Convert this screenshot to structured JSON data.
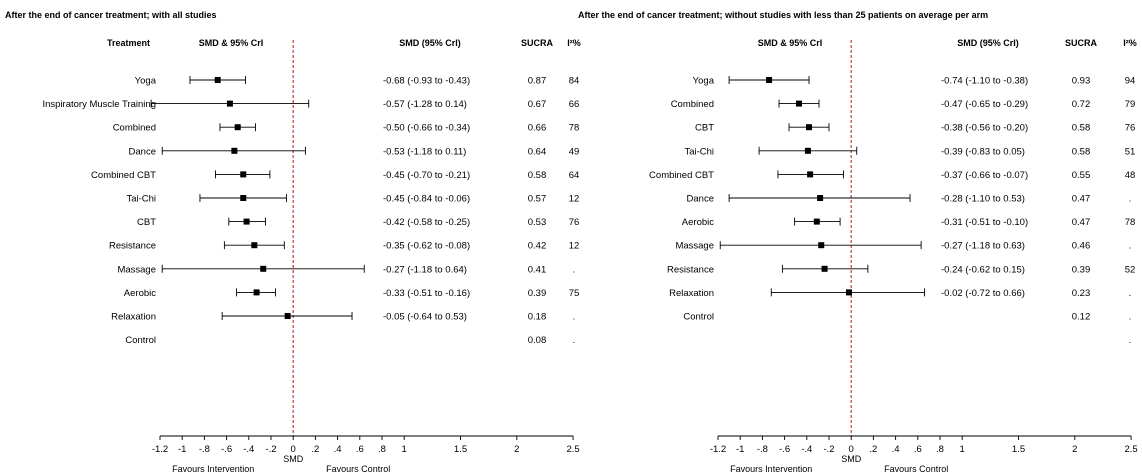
{
  "panels": [
    {
      "title": "After the end of cancer treatment; with all studies",
      "headers": {
        "treatment": "Treatment",
        "forest": "SMD  & 95% CrI",
        "ci": "SMD  (95% CrI)",
        "sucra": "SUCRA",
        "i2": "I²%"
      },
      "rows": [
        {
          "label": "Yoga",
          "ci": "-0.68 (-0.93 to -0.43)",
          "sucra": "0.87",
          "i2": "84"
        },
        {
          "label": "Inspiratory Muscle Training",
          "ci": "-0.57 (-1.28 to 0.14)",
          "sucra": "0.67",
          "i2": "66"
        },
        {
          "label": "Combined",
          "ci": "-0.50 (-0.66 to -0.34)",
          "sucra": "0.66",
          "i2": "78"
        },
        {
          "label": "Dance",
          "ci": "-0.53 (-1.18 to 0.11)",
          "sucra": "0.64",
          "i2": "49"
        },
        {
          "label": "Combined CBT",
          "ci": "-0.45 (-0.70 to -0.21)",
          "sucra": "0.58",
          "i2": "64"
        },
        {
          "label": "Tai-Chi",
          "ci": "-0.45 (-0.84 to -0.06)",
          "sucra": "0.57",
          "i2": "12"
        },
        {
          "label": "CBT",
          "ci": "-0.42 (-0.58 to -0.25)",
          "sucra": "0.53",
          "i2": "76"
        },
        {
          "label": "Resistance",
          "ci": "-0.35 (-0.62 to -0.08)",
          "sucra": "0.42",
          "i2": "12"
        },
        {
          "label": "Massage",
          "ci": "-0.27 (-1.18 to 0.64)",
          "sucra": "0.41",
          "i2": "."
        },
        {
          "label": "Aerobic",
          "ci": "-0.33 (-0.51 to -0.16)",
          "sucra": "0.39",
          "i2": "75"
        },
        {
          "label": "Relaxation",
          "ci": "-0.05 (-0.64 to 0.53)",
          "sucra": "0.18",
          "i2": "."
        },
        {
          "label": "Control",
          "ci": "",
          "sucra": "0.08",
          "i2": "."
        }
      ]
    },
    {
      "title": "After the end of cancer treatment; without studies with less than 25 patients on average per arm",
      "headers": {
        "treatment": "",
        "forest": "SMD  & 95% CrI",
        "ci": "SMD  (95% CrI)",
        "sucra": "SUCRA",
        "i2": "I²%"
      },
      "rows": [
        {
          "label": "Yoga",
          "ci": "-0.74 (-1.10 to -0.38)",
          "sucra": "0.93",
          "i2": "94"
        },
        {
          "label": "Combined",
          "ci": "-0.47 (-0.65 to -0.29)",
          "sucra": "0.72",
          "i2": "79"
        },
        {
          "label": "CBT",
          "ci": "-0.38 (-0.56 to -0.20)",
          "sucra": "0.58",
          "i2": "76"
        },
        {
          "label": "Tai-Chi",
          "ci": "-0.39 (-0.83 to 0.05)",
          "sucra": "0.58",
          "i2": "51"
        },
        {
          "label": "Combined CBT",
          "ci": "-0.37 (-0.66 to -0.07)",
          "sucra": "0.55",
          "i2": "48"
        },
        {
          "label": "Dance",
          "ci": "-0.28 (-1.10 to 0.53)",
          "sucra": "0.47",
          "i2": "."
        },
        {
          "label": "Aerobic",
          "ci": "-0.31 (-0.51 to -0.10)",
          "sucra": "0.47",
          "i2": "78"
        },
        {
          "label": "Massage",
          "ci": "-0.27 (-1.18 to 0.63)",
          "sucra": "0.46",
          "i2": "."
        },
        {
          "label": "Resistance",
          "ci": "-0.24 (-0.62 to 0.15)",
          "sucra": "0.39",
          "i2": "52"
        },
        {
          "label": "Relaxation",
          "ci": "-0.02 (-0.72 to 0.66)",
          "sucra": "0.23",
          "i2": "."
        },
        {
          "label": "Control",
          "ci": "",
          "sucra": "0.12",
          "i2": "."
        },
        {
          "label": "",
          "ci": "",
          "sucra": "",
          "i2": "."
        }
      ]
    }
  ],
  "axis": {
    "ticks": [
      "-1.2",
      "-1",
      "-.8",
      "-.6",
      "-.4",
      "-.2",
      "0",
      ".2",
      ".4",
      ".6",
      ".8",
      "1",
      "1.5",
      "2",
      "2.5"
    ],
    "xlabel": "SMD",
    "favours_left": "Favours Intervention",
    "favours_right": "Favours Control"
  },
  "colors": {
    "reference_line": "#e0453a",
    "marks": "#000000"
  },
  "chart_data": [
    {
      "type": "forest",
      "title": "After the end of cancer treatment; with all studies",
      "xlabel": "SMD",
      "xlim": [
        -1.2,
        2.5
      ],
      "reference_line": 0,
      "series": [
        {
          "label": "Yoga",
          "est": -0.68,
          "lo": -0.93,
          "hi": -0.43,
          "sucra": 0.87,
          "i2": 84
        },
        {
          "label": "Inspiratory Muscle Training",
          "est": -0.57,
          "lo": -1.28,
          "hi": 0.14,
          "sucra": 0.67,
          "i2": 66
        },
        {
          "label": "Combined",
          "est": -0.5,
          "lo": -0.66,
          "hi": -0.34,
          "sucra": 0.66,
          "i2": 78
        },
        {
          "label": "Dance",
          "est": -0.53,
          "lo": -1.18,
          "hi": 0.11,
          "sucra": 0.64,
          "i2": 49
        },
        {
          "label": "Combined CBT",
          "est": -0.45,
          "lo": -0.7,
          "hi": -0.21,
          "sucra": 0.58,
          "i2": 64
        },
        {
          "label": "Tai-Chi",
          "est": -0.45,
          "lo": -0.84,
          "hi": -0.06,
          "sucra": 0.57,
          "i2": 12
        },
        {
          "label": "CBT",
          "est": -0.42,
          "lo": -0.58,
          "hi": -0.25,
          "sucra": 0.53,
          "i2": 76
        },
        {
          "label": "Resistance",
          "est": -0.35,
          "lo": -0.62,
          "hi": -0.08,
          "sucra": 0.42,
          "i2": 12
        },
        {
          "label": "Massage",
          "est": -0.27,
          "lo": -1.18,
          "hi": 0.64,
          "sucra": 0.41,
          "i2": null
        },
        {
          "label": "Aerobic",
          "est": -0.33,
          "lo": -0.51,
          "hi": -0.16,
          "sucra": 0.39,
          "i2": 75
        },
        {
          "label": "Relaxation",
          "est": -0.05,
          "lo": -0.64,
          "hi": 0.53,
          "sucra": 0.18,
          "i2": null
        },
        {
          "label": "Control",
          "est": null,
          "lo": null,
          "hi": null,
          "sucra": 0.08,
          "i2": null
        }
      ]
    },
    {
      "type": "forest",
      "title": "After the end of cancer treatment; without studies with less than 25 patients on average per arm",
      "xlabel": "SMD",
      "xlim": [
        -1.2,
        2.5
      ],
      "reference_line": 0,
      "series": [
        {
          "label": "Yoga",
          "est": -0.74,
          "lo": -1.1,
          "hi": -0.38,
          "sucra": 0.93,
          "i2": 94
        },
        {
          "label": "Combined",
          "est": -0.47,
          "lo": -0.65,
          "hi": -0.29,
          "sucra": 0.72,
          "i2": 79
        },
        {
          "label": "CBT",
          "est": -0.38,
          "lo": -0.56,
          "hi": -0.2,
          "sucra": 0.58,
          "i2": 76
        },
        {
          "label": "Tai-Chi",
          "est": -0.39,
          "lo": -0.83,
          "hi": 0.05,
          "sucra": 0.58,
          "i2": 51
        },
        {
          "label": "Combined CBT",
          "est": -0.37,
          "lo": -0.66,
          "hi": -0.07,
          "sucra": 0.55,
          "i2": 48
        },
        {
          "label": "Dance",
          "est": -0.28,
          "lo": -1.1,
          "hi": 0.53,
          "sucra": 0.47,
          "i2": null
        },
        {
          "label": "Aerobic",
          "est": -0.31,
          "lo": -0.51,
          "hi": -0.1,
          "sucra": 0.47,
          "i2": 78
        },
        {
          "label": "Massage",
          "est": -0.27,
          "lo": -1.18,
          "hi": 0.63,
          "sucra": 0.46,
          "i2": null
        },
        {
          "label": "Resistance",
          "est": -0.24,
          "lo": -0.62,
          "hi": 0.15,
          "sucra": 0.39,
          "i2": 52
        },
        {
          "label": "Relaxation",
          "est": -0.02,
          "lo": -0.72,
          "hi": 0.66,
          "sucra": 0.23,
          "i2": null
        },
        {
          "label": "Control",
          "est": null,
          "lo": null,
          "hi": null,
          "sucra": 0.12,
          "i2": null
        }
      ]
    }
  ]
}
